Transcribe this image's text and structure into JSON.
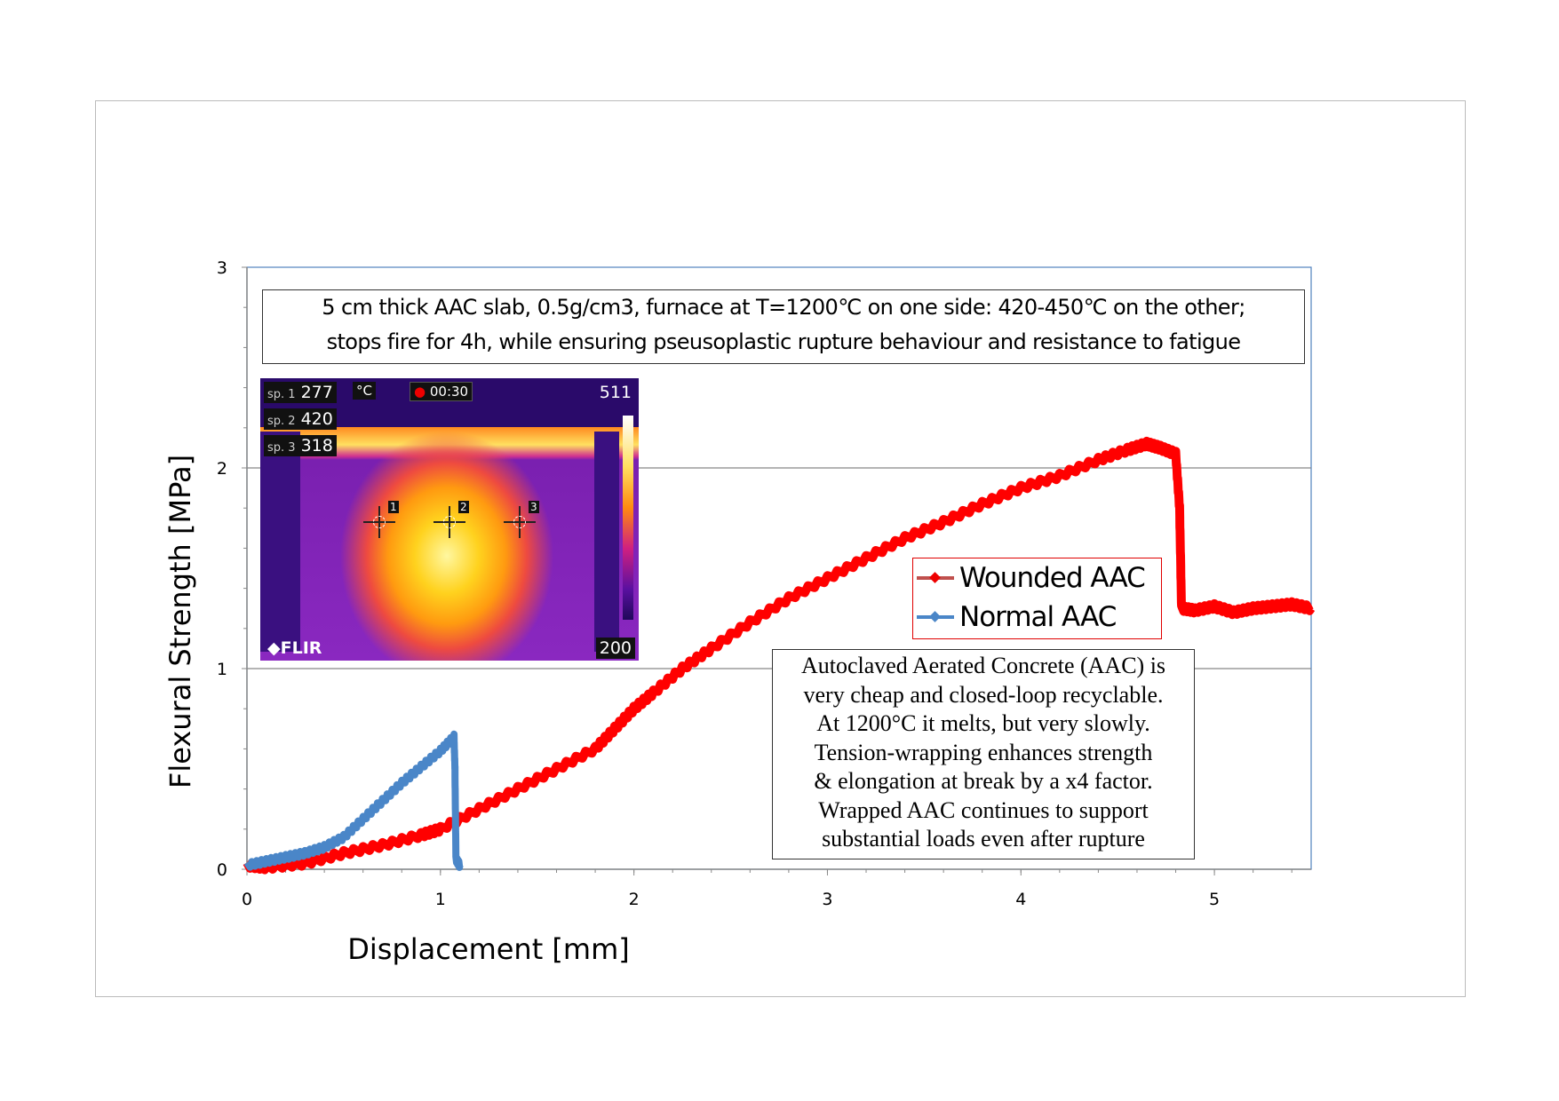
{
  "chart_data": {
    "type": "line",
    "title": "",
    "xlabel": "Displacement  [mm]",
    "ylabel": "Flexural Strength [MPa]",
    "xlim": [
      0,
      5.5
    ],
    "ylim": [
      0,
      3
    ],
    "x_ticks": [
      0,
      1,
      2,
      3,
      4,
      5
    ],
    "y_ticks": [
      0,
      1,
      2,
      3
    ],
    "grid": "horizontal major",
    "legend": {
      "placement": "center-right",
      "entries": [
        "Wounded AAC",
        "Normal AAC"
      ]
    },
    "series": [
      {
        "name": "Wounded AAC",
        "color": "#ff0000",
        "x": [
          0,
          0.1,
          0.3,
          0.5,
          0.7,
          0.9,
          1.0,
          1.2,
          1.4,
          1.6,
          1.8,
          1.9,
          2.0,
          2.1,
          2.25,
          2.4,
          2.6,
          2.8,
          3.0,
          3.2,
          3.4,
          3.6,
          3.8,
          4.0,
          4.2,
          4.4,
          4.55,
          4.65,
          4.72,
          4.8,
          4.82,
          4.83,
          4.9,
          5.0,
          5.1,
          5.2,
          5.3,
          5.4,
          5.5
        ],
        "y": [
          0.02,
          0.01,
          0.03,
          0.08,
          0.12,
          0.17,
          0.2,
          0.3,
          0.4,
          0.5,
          0.6,
          0.7,
          0.8,
          0.88,
          1.0,
          1.1,
          1.23,
          1.35,
          1.45,
          1.55,
          1.65,
          1.73,
          1.82,
          1.9,
          1.96,
          2.04,
          2.09,
          2.12,
          2.1,
          2.07,
          1.8,
          1.3,
          1.29,
          1.31,
          1.28,
          1.3,
          1.31,
          1.32,
          1.3
        ]
      },
      {
        "name": "Normal AAC",
        "color": "#4a86c8",
        "x": [
          0,
          0.1,
          0.2,
          0.3,
          0.4,
          0.5,
          0.6,
          0.7,
          0.8,
          0.9,
          1.0,
          1.07,
          1.075,
          1.08,
          1.1
        ],
        "y": [
          0.02,
          0.04,
          0.06,
          0.08,
          0.11,
          0.16,
          0.25,
          0.34,
          0.43,
          0.51,
          0.59,
          0.66,
          0.5,
          0.05,
          0.02
        ]
      }
    ],
    "annotations": {
      "title_box": [
        "5 cm thick AAC slab, 0.5g/cm3, furnace at T=1200℃ on one side: 420-450℃ on the other;",
        "stops fire for 4h, while ensuring pseusoplastic rupture behaviour and resistance to fatigue"
      ],
      "note_box": [
        "Autoclaved Aerated Concrete (AAC) is",
        "very cheap and closed-loop recyclable.",
        "At 1200°C it melts, but very slowly.",
        "Tension-wrapping enhances strength",
        "& elongation at break by a x4 factor.",
        "Wrapped AAC continues to support",
        "substantial loads even after rupture"
      ]
    }
  },
  "thermal_image": {
    "sp1_label": "sp. 1",
    "sp1_value": "277",
    "sp2_label": "sp. 2",
    "sp2_value": "420",
    "sp3_label": "sp. 3",
    "sp3_value": "318",
    "unit": "°C",
    "timer": "00:30",
    "scale_max": "511",
    "scale_min": "200",
    "brand": "FLIR",
    "markers": [
      "1",
      "2",
      "3"
    ]
  }
}
